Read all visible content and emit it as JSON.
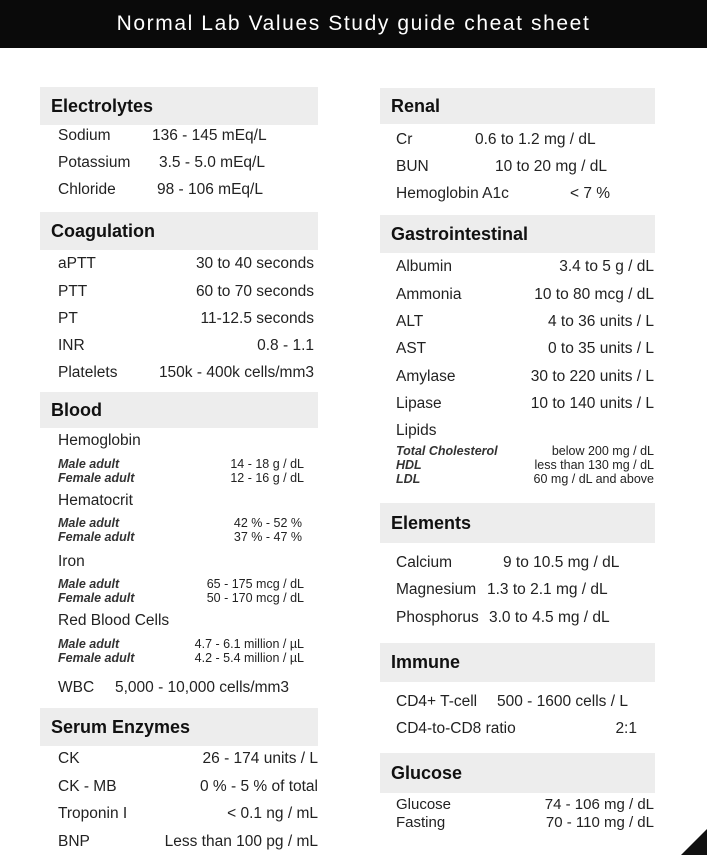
{
  "title": "Normal Lab Values Study guide cheat sheet",
  "sections": [
    {
      "title": "Electrolytes",
      "rows": [
        {
          "name": "Sodium",
          "value": "136 - 145 mEq/L"
        },
        {
          "name": "Potassium",
          "value": "3.5 - 5.0 mEq/L"
        },
        {
          "name": "Chloride",
          "value": "98 - 106 mEq/L"
        }
      ]
    },
    {
      "title": "Coagulation",
      "rows": [
        {
          "name": "aPTT",
          "value": "30 to 40 seconds"
        },
        {
          "name": "PTT",
          "value": "60 to 70 seconds"
        },
        {
          "name": "PT",
          "value": "11-12.5 seconds"
        },
        {
          "name": "INR",
          "value": "0.8 - 1.1"
        },
        {
          "name": "Platelets",
          "value": "150k - 400k cells/mm3"
        }
      ]
    },
    {
      "title": "Blood",
      "rows": [
        {
          "name": "Hemoglobin",
          "kind": "label"
        },
        {
          "name": "Male adult",
          "value": "14 - 18 g / dL",
          "kind": "sub"
        },
        {
          "name": "Female adult",
          "value": "12 - 16 g / dL",
          "kind": "sub"
        },
        {
          "name": "Hematocrit",
          "kind": "label"
        },
        {
          "name": "Male adult",
          "value": "42 % - 52 %",
          "kind": "sub"
        },
        {
          "name": "Female adult",
          "value": "37 % - 47 %",
          "kind": "sub"
        },
        {
          "name": "Iron",
          "kind": "label"
        },
        {
          "name": "Male adult",
          "value": "65 - 175 mcg / dL",
          "kind": "sub"
        },
        {
          "name": "Female adult",
          "value": "50 - 170 mcg / dL",
          "kind": "sub"
        },
        {
          "name": "Red Blood Cells",
          "kind": "label"
        },
        {
          "name": "Male adult",
          "value": "4.7 - 6.1 million / µL",
          "kind": "sub"
        },
        {
          "name": "Female adult",
          "value": "4.2 - 5.4 million / µL",
          "kind": "sub"
        },
        {
          "name": "WBC",
          "value": "5,000 - 10,000 cells/mm3"
        }
      ]
    },
    {
      "title": "Serum Enzymes",
      "rows": [
        {
          "name": "CK",
          "value": "26 - 174 units / L"
        },
        {
          "name": "CK - MB",
          "value": "0 % - 5 % of total"
        },
        {
          "name": "Troponin I",
          "value": "< 0.1 ng / mL"
        },
        {
          "name": "BNP",
          "value": "Less than 100 pg / mL"
        }
      ]
    },
    {
      "title": "Renal",
      "rows": [
        {
          "name": "Cr",
          "value": "0.6  to 1.2 mg / dL"
        },
        {
          "name": "BUN",
          "value": "10 to 20 mg / dL"
        },
        {
          "name": "Hemoglobin A1c",
          "value": "< 7 %"
        }
      ]
    },
    {
      "title": "Gastrointestinal",
      "rows": [
        {
          "name": "Albumin",
          "value": "3.4 to 5 g / dL"
        },
        {
          "name": "Ammonia",
          "value": "10 to 80 mcg / dL"
        },
        {
          "name": "ALT",
          "value": "4 to 36 units / L"
        },
        {
          "name": "AST",
          "value": "0 to 35 units / L"
        },
        {
          "name": "Amylase",
          "value": "30 to 220 units / L"
        },
        {
          "name": "Lipase",
          "value": "10 to 140 units / L"
        },
        {
          "name": "Lipids",
          "kind": "label"
        },
        {
          "name": "Total Cholesterol",
          "value": "below 200 mg / dL",
          "kind": "sub"
        },
        {
          "name": "HDL",
          "value": "less than 130 mg / dL",
          "kind": "sub"
        },
        {
          "name": "LDL",
          "value": "60 mg / dL and above",
          "kind": "sub"
        }
      ]
    },
    {
      "title": "Elements",
      "rows": [
        {
          "name": "Calcium",
          "value": "9 to 10.5 mg / dL"
        },
        {
          "name": "Magnesium",
          "value": "1.3 to 2.1 mg / dL"
        },
        {
          "name": "Phosphorus",
          "value": "3.0 to 4.5 mg / dL"
        }
      ]
    },
    {
      "title": "Immune",
      "rows": [
        {
          "name": "CD4+ T-cell",
          "value": "500 - 1600 cells / L"
        },
        {
          "name": "CD4-to-CD8 ratio",
          "value": "2:1"
        }
      ]
    },
    {
      "title": "Glucose",
      "rows": [
        {
          "name": "Glucose",
          "value": "74 - 106 mg / dL"
        },
        {
          "name": "Fasting",
          "value": "70 - 110 mg / dL"
        }
      ]
    }
  ]
}
